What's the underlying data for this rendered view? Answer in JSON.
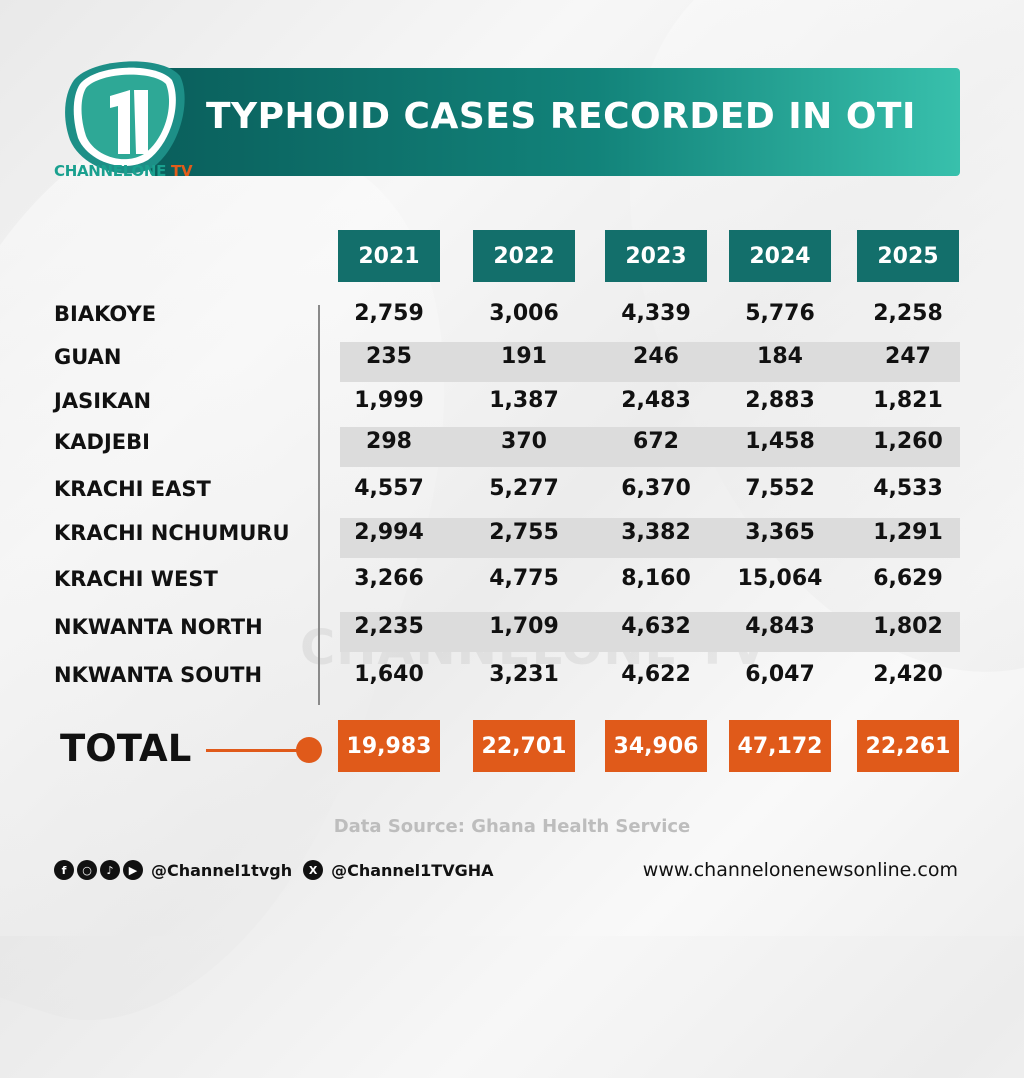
{
  "header": {
    "title": "TYPHOID CASES RECORDED IN OTI",
    "logo_text_main": "CHANNELONE",
    "logo_text_tv": "TV",
    "watermark": "CHANNELONE TV"
  },
  "chart_data": {
    "type": "table",
    "title": "TYPHOID CASES RECORDED IN OTI",
    "columns": [
      "2021",
      "2022",
      "2023",
      "2024",
      "2025"
    ],
    "rows": [
      {
        "label": "BIAKOYE",
        "values": [
          "2,759",
          "3,006",
          "4,339",
          "5,776",
          "2,258"
        ]
      },
      {
        "label": "GUAN",
        "values": [
          "235",
          "191",
          "246",
          "184",
          "247"
        ]
      },
      {
        "label": "JASIKAN",
        "values": [
          "1,999",
          "1,387",
          "2,483",
          "2,883",
          "1,821"
        ]
      },
      {
        "label": "KADJEBI",
        "values": [
          "298",
          "370",
          "672",
          "1,458",
          "1,260"
        ]
      },
      {
        "label": "KRACHI EAST",
        "values": [
          "4,557",
          "5,277",
          "6,370",
          "7,552",
          "4,533"
        ]
      },
      {
        "label": "KRACHI NCHUMURU",
        "values": [
          "2,994",
          "2,755",
          "3,382",
          "3,365",
          "1,291"
        ]
      },
      {
        "label": "KRACHI WEST",
        "values": [
          "3,266",
          "4,775",
          "8,160",
          "15,064",
          "6,629"
        ]
      },
      {
        "label": "NKWANTA NORTH",
        "values": [
          "2,235",
          "1,709",
          "4,632",
          "4,843",
          "1,802"
        ]
      },
      {
        "label": "NKWANTA SOUTH",
        "values": [
          "1,640",
          "3,231",
          "4,622",
          "6,047",
          "2,420"
        ]
      }
    ],
    "total": {
      "label": "TOTAL",
      "values": [
        "19,983",
        "22,701",
        "34,906",
        "47,172",
        "22,261"
      ]
    }
  },
  "footer": {
    "source": "Data Source: Ghana Health Service",
    "handle_1": "@Channel1tvgh",
    "handle_2": "@Channel1TVGHA",
    "website": "www.channelonenewsonline.com",
    "icons": [
      "facebook-icon",
      "instagram-icon",
      "tiktok-icon",
      "youtube-icon",
      "x-icon"
    ]
  },
  "colors": {
    "teal": "#136f6b",
    "orange": "#e05a1a",
    "stripe": "#dcdcdc"
  }
}
